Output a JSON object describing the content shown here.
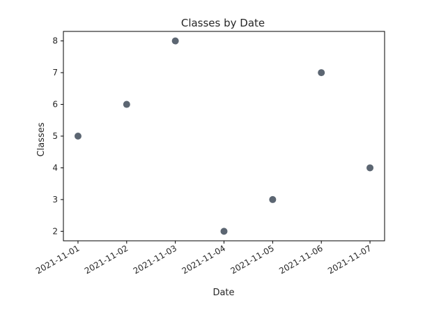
{
  "chart_data": {
    "type": "scatter",
    "title": "Classes by Date",
    "xlabel": "Date",
    "ylabel": "Classes",
    "x": [
      "2021-11-01",
      "2021-11-02",
      "2021-11-03",
      "2021-11-04",
      "2021-11-05",
      "2021-11-06",
      "2021-11-07"
    ],
    "y": [
      5,
      6,
      8,
      2,
      3,
      7,
      4
    ],
    "yticks": [
      2,
      3,
      4,
      5,
      6,
      7,
      8
    ],
    "ylim": [
      1.7,
      8.3
    ],
    "xlim": [
      "2021-10-31",
      "2021-11-07"
    ],
    "marker_color": "#5c6672",
    "grid": false,
    "legend": "none"
  }
}
